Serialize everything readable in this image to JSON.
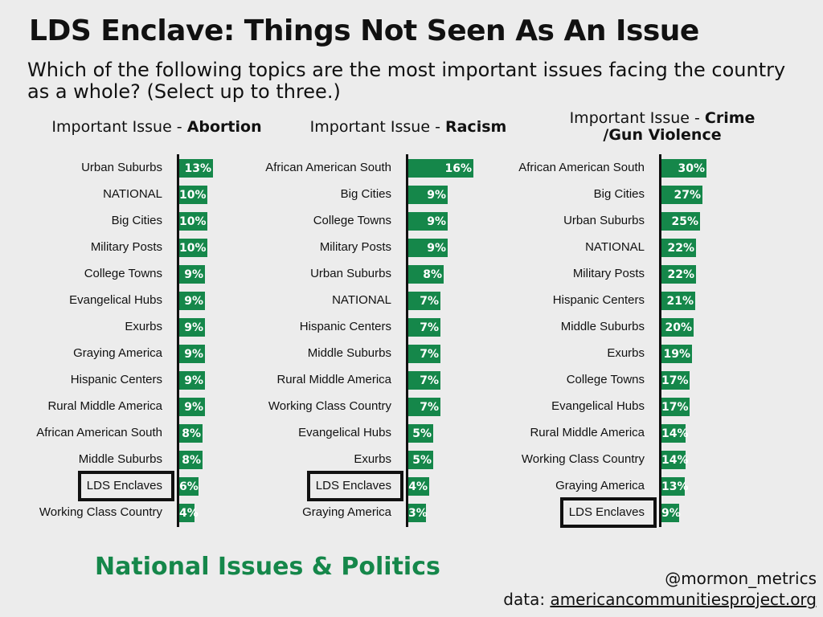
{
  "title": "LDS Enclave: Things Not Seen As An Issue",
  "subtitle": "Which of the following topics are the most important issues facing the country as a whole? (Select up to three.)",
  "footer": {
    "section": "National Issues & Politics",
    "handle": "@mormon_metrics",
    "source_label": "data:",
    "source_url": "americancommunitiesproject.org"
  },
  "colors": {
    "bar": "#15874a",
    "text": "#111111",
    "background": "#ececec"
  },
  "chart_data": [
    {
      "type": "bar",
      "orientation": "horizontal",
      "title_prefix": "Important Issue - ",
      "title_topic": "Abortion",
      "highlight": "LDS Enclaves",
      "unit": "%",
      "categories": [
        "Urban Suburbs",
        "NATIONAL",
        "Big Cities",
        "Military Posts",
        "College Towns",
        "Evangelical Hubs",
        "Exurbs",
        "Graying America",
        "Hispanic Centers",
        "Rural Middle America",
        "African American South",
        "Middle Suburbs",
        "LDS Enclaves",
        "Working Class Country"
      ],
      "values": [
        13,
        10,
        10,
        10,
        9,
        9,
        9,
        9,
        9,
        9,
        8,
        8,
        6,
        4
      ]
    },
    {
      "type": "bar",
      "orientation": "horizontal",
      "title_prefix": "Important Issue - ",
      "title_topic": "Racism",
      "highlight": "LDS Enclaves",
      "unit": "%",
      "categories": [
        "African American South",
        "Big Cities",
        "College Towns",
        "Military Posts",
        "Urban Suburbs",
        "NATIONAL",
        "Hispanic Centers",
        "Middle Suburbs",
        "Rural Middle America",
        "Working Class Country",
        "Evangelical Hubs",
        "Exurbs",
        "LDS Enclaves",
        "Graying America"
      ],
      "values": [
        16,
        9,
        9,
        9,
        8,
        7,
        7,
        7,
        7,
        7,
        5,
        5,
        4,
        3
      ]
    },
    {
      "type": "bar",
      "orientation": "horizontal",
      "title_prefix": "Important Issue - ",
      "title_topic": "Crime",
      "title_topic_line2": "/Gun Violence",
      "highlight": "LDS Enclaves",
      "unit": "%",
      "categories": [
        "African American South",
        "Big Cities",
        "Urban Suburbs",
        "NATIONAL",
        "Military Posts",
        "Hispanic Centers",
        "Middle Suburbs",
        "Exurbs",
        "College Towns",
        "Evangelical Hubs",
        "Rural Middle America",
        "Working Class Country",
        "Graying America",
        "LDS Enclaves"
      ],
      "values": [
        30,
        27,
        25,
        22,
        22,
        21,
        20,
        19,
        17,
        17,
        14,
        14,
        13,
        9
      ]
    }
  ]
}
